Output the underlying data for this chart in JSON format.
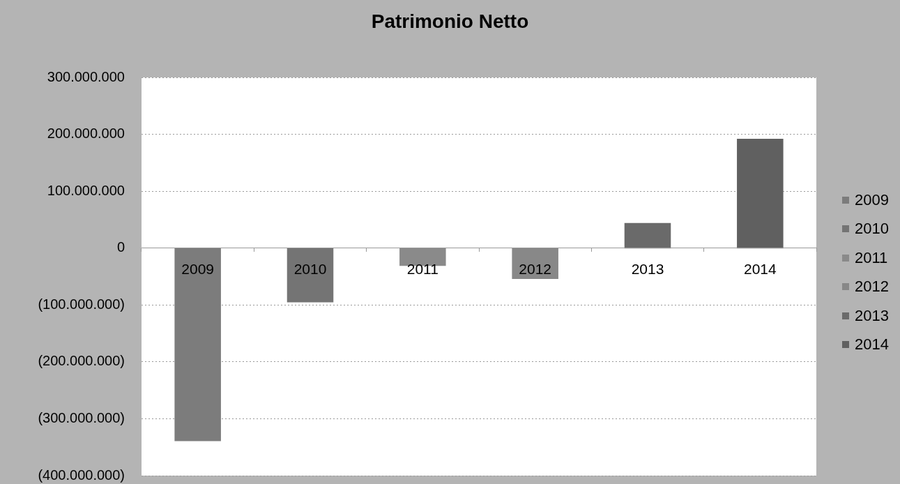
{
  "chart_data": {
    "type": "bar",
    "title": "Patrimonio Netto",
    "categories": [
      "2009",
      "2010",
      "2011",
      "2012",
      "2013",
      "2014"
    ],
    "series": [
      {
        "name": "2009",
        "color": "#7c7c7c",
        "values": [
          -338000000,
          null,
          null,
          null,
          null,
          null
        ]
      },
      {
        "name": "2010",
        "color": "#747474",
        "values": [
          null,
          -94000000,
          null,
          null,
          null,
          null
        ]
      },
      {
        "name": "2011",
        "color": "#8a8a8a",
        "values": [
          null,
          null,
          -30000000,
          null,
          null,
          null
        ]
      },
      {
        "name": "2012",
        "color": "#888888",
        "values": [
          null,
          null,
          null,
          -53000000,
          null,
          null
        ]
      },
      {
        "name": "2013",
        "color": "#6a6a6a",
        "values": [
          null,
          null,
          null,
          null,
          43000000,
          null
        ]
      },
      {
        "name": "2014",
        "color": "#606060",
        "values": [
          null,
          null,
          null,
          null,
          null,
          191000000
        ]
      }
    ],
    "ylim": [
      -400000000,
      300000000
    ],
    "yticks": [
      {
        "value": -400000000,
        "label": "(400.000.000)"
      },
      {
        "value": -300000000,
        "label": "(300.000.000)"
      },
      {
        "value": -200000000,
        "label": "(200.000.000)"
      },
      {
        "value": -100000000,
        "label": "(100.000.000)"
      },
      0,
      {
        "value": 100000000,
        "label": "100.000.000"
      },
      {
        "value": 200000000,
        "label": "200.000.000"
      },
      {
        "value": 300000000,
        "label": "300.000.000"
      }
    ],
    "grid": "y",
    "legend": "right"
  }
}
